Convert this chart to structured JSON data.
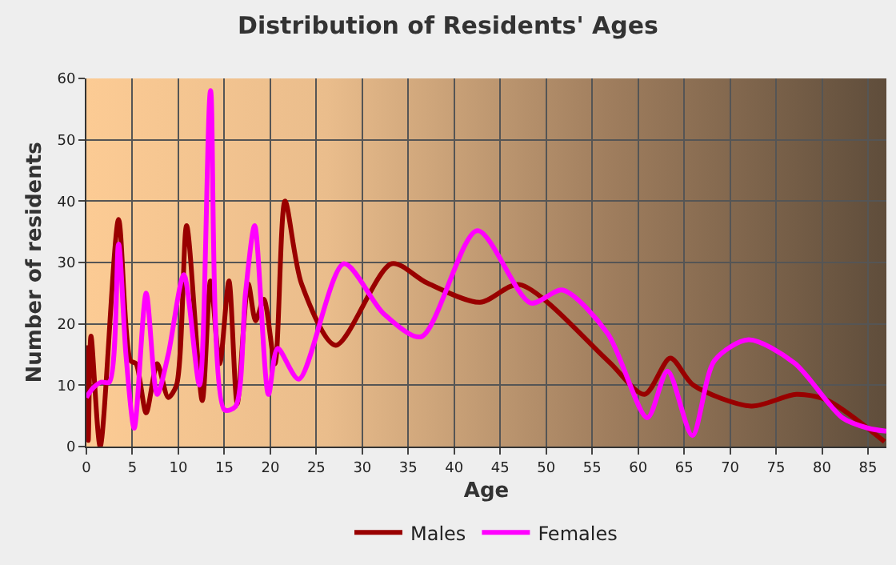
{
  "chart_data": {
    "type": "line",
    "title": "Distribution of Residents' Ages",
    "xlabel": "Age",
    "ylabel": "Number of residents",
    "xlim": [
      0,
      87
    ],
    "xticks": [
      0,
      5,
      10,
      15,
      20,
      25,
      30,
      35,
      40,
      45,
      50,
      55,
      60,
      65,
      70,
      75,
      80,
      85
    ],
    "ylim": [
      0,
      60
    ],
    "yticks": [
      0,
      10,
      20,
      30,
      40,
      50,
      60
    ],
    "grid": true,
    "legend": "bottom",
    "series": [
      {
        "name": "Males",
        "color": "#990000",
        "x": [
          0,
          0.2,
          0.5,
          1.5,
          3.5,
          4.8,
          5.4,
          6.5,
          7.7,
          8.9,
          9.8,
          10.9,
          12.6,
          13.5,
          14.5,
          15.5,
          16.4,
          17.6,
          18.4,
          19.3,
          20.5,
          21.6,
          23.4,
          27.1,
          33.2,
          37,
          42.8,
          47.1,
          56.7,
          60.7,
          63.5,
          66,
          72.3,
          77.2,
          80.5,
          86.8
        ],
        "values": [
          16.5,
          1,
          18,
          0,
          37,
          14,
          13.5,
          5.5,
          13.5,
          8,
          10,
          36,
          7.5,
          27,
          13.5,
          27,
          7,
          26.5,
          20.5,
          24,
          13.5,
          40,
          26.5,
          16.5,
          29.8,
          26.7,
          23.5,
          26.4,
          14,
          8.5,
          14.4,
          10,
          6.6,
          8.5,
          7.6,
          0.8
        ]
      },
      {
        "name": "Females",
        "color": "#ff00ff",
        "x": [
          0,
          0.7,
          1.6,
          2.5,
          3.5,
          4.3,
          5.2,
          6.5,
          7.7,
          8.9,
          10.6,
          12.3,
          13.5,
          15,
          16.2,
          17.3,
          18.3,
          19.8,
          20.8,
          23.1,
          28,
          32.3,
          36.4,
          42.5,
          48.3,
          51.8,
          56.7,
          61,
          63.2,
          65.9,
          68.3,
          72,
          77,
          82.2,
          85,
          87
        ],
        "values": [
          8,
          9.5,
          10.5,
          10.5,
          33,
          15,
          3,
          25,
          8.5,
          15,
          28,
          10,
          58,
          6,
          6.5,
          25,
          36,
          8.5,
          16,
          11,
          29.8,
          21.7,
          17.9,
          35.2,
          23.4,
          25.5,
          18.4,
          4.7,
          12.3,
          1.8,
          14,
          17.4,
          13.6,
          4.7,
          3,
          2.5
        ]
      }
    ]
  }
}
